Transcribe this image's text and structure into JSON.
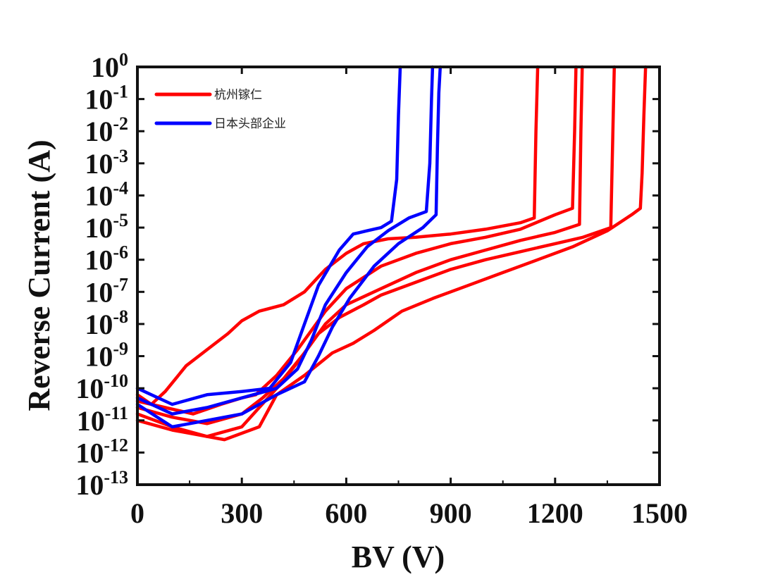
{
  "chart_data": {
    "type": "line",
    "xlabel": "BV (V)",
    "ylabel": "Reverse Current (A)",
    "xlim": [
      0,
      1500
    ],
    "ylim_log10": [
      -13,
      0
    ],
    "y_scale": "log",
    "x_ticks": [
      0,
      300,
      600,
      900,
      1200,
      1500
    ],
    "y_tick_exponents": [
      0,
      -1,
      -2,
      -3,
      -4,
      -5,
      -6,
      -7,
      -8,
      -9,
      -10,
      -11,
      -12,
      -13
    ],
    "y_tick_base": "10",
    "legend": {
      "placement": "top-left"
    },
    "series": [
      {
        "name": "杭州镓仁",
        "color": "#ff0000",
        "curves": [
          [
            [
              0,
              -10.2
            ],
            [
              40,
              -10.5
            ],
            [
              80,
              -10.1
            ],
            [
              140,
              -9.3
            ],
            [
              200,
              -8.8
            ],
            [
              260,
              -8.3
            ],
            [
              300,
              -7.9
            ],
            [
              350,
              -7.6
            ],
            [
              420,
              -7.4
            ],
            [
              480,
              -7.0
            ],
            [
              540,
              -6.3
            ],
            [
              600,
              -5.8
            ],
            [
              650,
              -5.5
            ],
            [
              720,
              -5.35
            ],
            [
              800,
              -5.3
            ],
            [
              900,
              -5.2
            ],
            [
              1000,
              -5.05
            ],
            [
              1100,
              -4.85
            ],
            [
              1140,
              -4.7
            ],
            [
              1145,
              -2.0
            ],
            [
              1150,
              0.0
            ]
          ],
          [
            [
              0,
              -10.4
            ],
            [
              80,
              -10.6
            ],
            [
              160,
              -10.8
            ],
            [
              240,
              -10.5
            ],
            [
              300,
              -10.3
            ],
            [
              340,
              -10.2
            ],
            [
              400,
              -9.6
            ],
            [
              460,
              -8.8
            ],
            [
              540,
              -7.6
            ],
            [
              600,
              -6.9
            ],
            [
              700,
              -6.2
            ],
            [
              800,
              -5.8
            ],
            [
              900,
              -5.5
            ],
            [
              1000,
              -5.3
            ],
            [
              1100,
              -5.05
            ],
            [
              1200,
              -4.6
            ],
            [
              1250,
              -4.4
            ],
            [
              1256,
              -2.0
            ],
            [
              1260,
              0.0
            ]
          ],
          [
            [
              0,
              -10.6
            ],
            [
              100,
              -10.9
            ],
            [
              200,
              -11.1
            ],
            [
              300,
              -10.8
            ],
            [
              360,
              -10.3
            ],
            [
              420,
              -9.7
            ],
            [
              480,
              -8.9
            ],
            [
              540,
              -8.0
            ],
            [
              600,
              -7.4
            ],
            [
              700,
              -6.9
            ],
            [
              800,
              -6.4
            ],
            [
              900,
              -6.0
            ],
            [
              1000,
              -5.7
            ],
            [
              1100,
              -5.4
            ],
            [
              1200,
              -5.15
            ],
            [
              1270,
              -4.9
            ],
            [
              1274,
              -2.0
            ],
            [
              1278,
              0.0
            ]
          ],
          [
            [
              0,
              -10.8
            ],
            [
              100,
              -11.2
            ],
            [
              200,
              -11.5
            ],
            [
              300,
              -11.2
            ],
            [
              400,
              -10.0
            ],
            [
              460,
              -9.2
            ],
            [
              520,
              -8.3
            ],
            [
              580,
              -7.8
            ],
            [
              650,
              -7.4
            ],
            [
              700,
              -7.1
            ],
            [
              800,
              -6.7
            ],
            [
              900,
              -6.3
            ],
            [
              1000,
              -6.0
            ],
            [
              1100,
              -5.75
            ],
            [
              1200,
              -5.5
            ],
            [
              1280,
              -5.3
            ],
            [
              1360,
              -5.0
            ],
            [
              1366,
              -2.0
            ],
            [
              1370,
              0.0
            ]
          ],
          [
            [
              0,
              -11.0
            ],
            [
              100,
              -11.3
            ],
            [
              250,
              -11.6
            ],
            [
              350,
              -11.2
            ],
            [
              400,
              -10.2
            ],
            [
              480,
              -9.6
            ],
            [
              560,
              -8.9
            ],
            [
              620,
              -8.6
            ],
            [
              680,
              -8.2
            ],
            [
              760,
              -7.6
            ],
            [
              850,
              -7.2
            ],
            [
              950,
              -6.8
            ],
            [
              1050,
              -6.4
            ],
            [
              1150,
              -6.0
            ],
            [
              1250,
              -5.6
            ],
            [
              1350,
              -5.1
            ],
            [
              1420,
              -4.6
            ],
            [
              1445,
              -4.4
            ],
            [
              1450,
              -3.3
            ],
            [
              1455,
              -1.5
            ],
            [
              1460,
              0.0
            ]
          ]
        ]
      },
      {
        "name": "日本头部企业",
        "color": "#0000ff",
        "curves": [
          [
            [
              0,
              -10.0
            ],
            [
              100,
              -10.5
            ],
            [
              200,
              -10.2
            ],
            [
              300,
              -10.1
            ],
            [
              380,
              -10.0
            ],
            [
              440,
              -9.2
            ],
            [
              480,
              -8.0
            ],
            [
              520,
              -6.8
            ],
            [
              580,
              -5.7
            ],
            [
              620,
              -5.2
            ],
            [
              660,
              -5.1
            ],
            [
              700,
              -5.0
            ],
            [
              730,
              -4.8
            ],
            [
              745,
              -3.5
            ],
            [
              750,
              -1.5
            ],
            [
              755,
              0.0
            ]
          ],
          [
            [
              0,
              -10.3
            ],
            [
              100,
              -10.8
            ],
            [
              200,
              -10.6
            ],
            [
              300,
              -10.3
            ],
            [
              400,
              -10.0
            ],
            [
              460,
              -9.4
            ],
            [
              500,
              -8.5
            ],
            [
              540,
              -7.4
            ],
            [
              600,
              -6.4
            ],
            [
              660,
              -5.6
            ],
            [
              720,
              -5.1
            ],
            [
              780,
              -4.7
            ],
            [
              830,
              -4.5
            ],
            [
              840,
              -3.0
            ],
            [
              845,
              -1.0
            ],
            [
              848,
              0.0
            ]
          ],
          [
            [
              0,
              -10.5
            ],
            [
              100,
              -11.2
            ],
            [
              200,
              -11.0
            ],
            [
              300,
              -10.8
            ],
            [
              400,
              -10.2
            ],
            [
              480,
              -9.8
            ],
            [
              520,
              -9.0
            ],
            [
              560,
              -8.1
            ],
            [
              610,
              -7.2
            ],
            [
              680,
              -6.2
            ],
            [
              750,
              -5.5
            ],
            [
              820,
              -5.0
            ],
            [
              858,
              -4.6
            ],
            [
              862,
              -2.5
            ],
            [
              866,
              -0.8
            ],
            [
              870,
              0.0
            ]
          ]
        ]
      }
    ]
  }
}
